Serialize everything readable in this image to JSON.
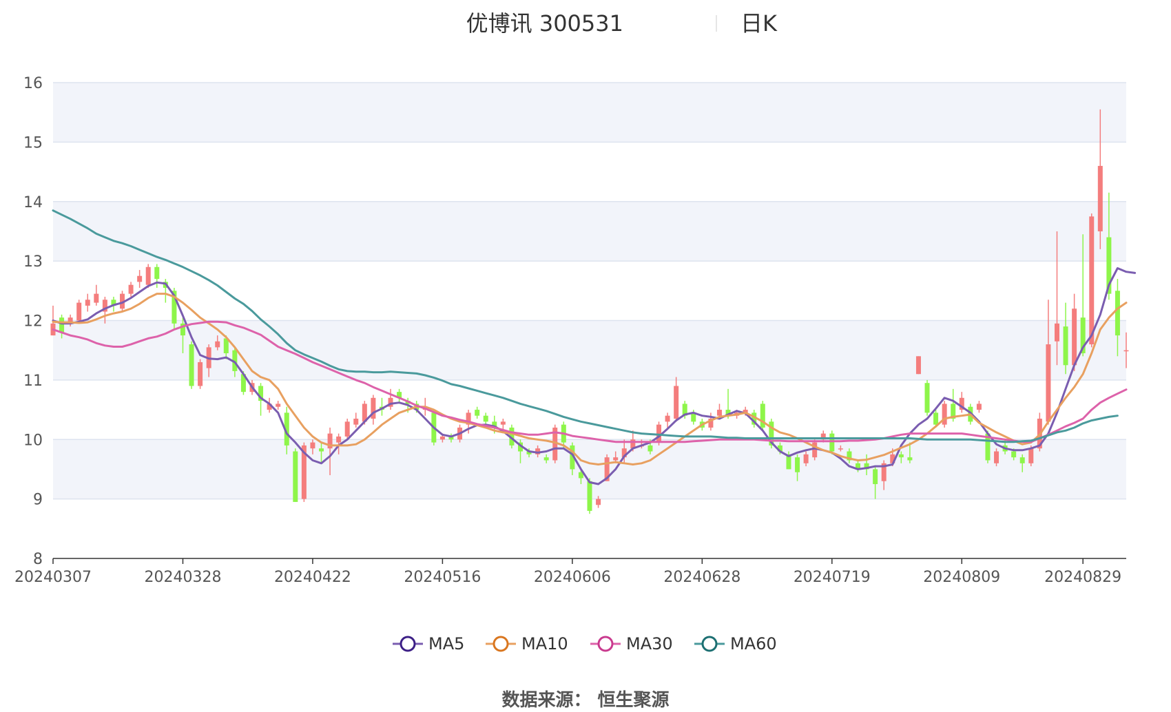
{
  "title": {
    "stock": "优博讯 300531",
    "period": "日K"
  },
  "source_label": "数据来源：  恒生聚源",
  "colors": {
    "up": "#f47d7d",
    "down": "#8ef54a",
    "ma5": "#7a5db0",
    "ma10": "#e8a060",
    "ma30": "#dd62aa",
    "ma60": "#4a9a9c",
    "grid": "#dde3ef",
    "band": "#f2f4fa",
    "legend_ma5": "#3c1f86",
    "legend_ma10": "#d9761f",
    "legend_ma30": "#c93a8e",
    "legend_ma60": "#1c6f72"
  },
  "chart_data": {
    "type": "candlestick",
    "ylim": [
      8,
      16
    ],
    "yticks": [
      8,
      9,
      10,
      11,
      12,
      13,
      14,
      15,
      16
    ],
    "xtick_labels": [
      "20240307",
      "20240328",
      "20240422",
      "20240516",
      "20240606",
      "20240628",
      "20240719",
      "20240809",
      "20240829"
    ],
    "xtick_index": [
      0,
      15,
      30,
      45,
      60,
      75,
      90,
      105,
      119
    ],
    "legend": [
      "MA5",
      "MA10",
      "MA30",
      "MA60"
    ],
    "candles": [
      [
        11.75,
        11.95,
        11.75,
        12.25
      ],
      [
        12.05,
        11.8,
        11.7,
        12.1
      ],
      [
        11.95,
        12.05,
        11.9,
        12.1
      ],
      [
        12.0,
        12.3,
        11.95,
        12.35
      ],
      [
        12.25,
        12.35,
        12.15,
        12.45
      ],
      [
        12.3,
        12.45,
        12.25,
        12.6
      ],
      [
        12.15,
        12.35,
        11.95,
        12.4
      ],
      [
        12.35,
        12.25,
        12.15,
        12.4
      ],
      [
        12.2,
        12.45,
        12.15,
        12.5
      ],
      [
        12.45,
        12.6,
        12.4,
        12.65
      ],
      [
        12.65,
        12.75,
        12.55,
        12.85
      ],
      [
        12.6,
        12.9,
        12.55,
        12.95
      ],
      [
        12.9,
        12.7,
        12.55,
        12.95
      ],
      [
        12.65,
        12.55,
        12.3,
        12.7
      ],
      [
        12.5,
        11.95,
        11.85,
        12.55
      ],
      [
        11.95,
        11.75,
        11.45,
        12.05
      ],
      [
        11.6,
        10.9,
        10.85,
        11.65
      ],
      [
        10.9,
        11.3,
        10.85,
        11.35
      ],
      [
        11.2,
        11.55,
        11.05,
        11.6
      ],
      [
        11.55,
        11.65,
        11.5,
        11.75
      ],
      [
        11.7,
        11.45,
        11.35,
        11.75
      ],
      [
        11.5,
        11.15,
        11.05,
        11.55
      ],
      [
        11.1,
        10.8,
        10.75,
        11.15
      ],
      [
        10.8,
        10.95,
        10.75,
        11.0
      ],
      [
        10.9,
        10.65,
        10.4,
        10.95
      ],
      [
        10.5,
        10.6,
        10.45,
        10.7
      ],
      [
        10.55,
        10.6,
        10.5,
        10.65
      ],
      [
        10.45,
        9.9,
        9.75,
        10.55
      ],
      [
        9.8,
        8.95,
        8.95,
        9.85
      ],
      [
        9.0,
        9.9,
        8.95,
        9.95
      ],
      [
        9.85,
        9.95,
        9.75,
        10.0
      ],
      [
        9.85,
        9.8,
        9.6,
        9.95
      ],
      [
        9.85,
        10.1,
        9.4,
        10.2
      ],
      [
        9.95,
        10.05,
        9.75,
        10.1
      ],
      [
        10.05,
        10.3,
        10.0,
        10.35
      ],
      [
        10.25,
        10.35,
        10.2,
        10.45
      ],
      [
        10.3,
        10.6,
        10.25,
        10.65
      ],
      [
        10.35,
        10.7,
        10.25,
        10.75
      ],
      [
        10.55,
        10.5,
        10.4,
        10.7
      ],
      [
        10.55,
        10.7,
        10.5,
        10.85
      ],
      [
        10.8,
        10.7,
        10.6,
        10.85
      ],
      [
        10.65,
        10.6,
        10.45,
        10.7
      ],
      [
        10.6,
        10.5,
        10.45,
        10.65
      ],
      [
        10.5,
        10.55,
        10.4,
        10.7
      ],
      [
        10.45,
        9.95,
        9.9,
        10.5
      ],
      [
        10.0,
        10.05,
        9.95,
        10.1
      ],
      [
        10.05,
        10.0,
        9.95,
        10.1
      ],
      [
        10.0,
        10.2,
        9.95,
        10.25
      ],
      [
        10.25,
        10.45,
        10.1,
        10.5
      ],
      [
        10.5,
        10.4,
        10.35,
        10.55
      ],
      [
        10.4,
        10.3,
        10.2,
        10.45
      ],
      [
        10.3,
        10.2,
        10.1,
        10.4
      ],
      [
        10.25,
        10.3,
        10.15,
        10.35
      ],
      [
        10.2,
        9.9,
        9.85,
        10.25
      ],
      [
        9.95,
        9.8,
        9.6,
        10.0
      ],
      [
        9.8,
        9.75,
        9.7,
        9.85
      ],
      [
        9.75,
        9.85,
        9.7,
        9.9
      ],
      [
        9.7,
        9.65,
        9.6,
        9.75
      ],
      [
        9.65,
        10.2,
        9.6,
        10.25
      ],
      [
        10.25,
        9.95,
        9.85,
        10.3
      ],
      [
        9.9,
        9.5,
        9.4,
        9.95
      ],
      [
        9.45,
        9.35,
        9.25,
        9.5
      ],
      [
        9.3,
        8.8,
        8.75,
        9.35
      ],
      [
        8.9,
        9.0,
        8.85,
        9.05
      ],
      [
        9.3,
        9.7,
        9.3,
        9.75
      ],
      [
        9.65,
        9.7,
        9.6,
        9.8
      ],
      [
        9.7,
        9.85,
        9.6,
        10.0
      ],
      [
        9.85,
        10.0,
        9.8,
        10.15
      ],
      [
        9.9,
        9.9,
        9.85,
        10.0
      ],
      [
        9.9,
        9.8,
        9.75,
        10.0
      ],
      [
        9.95,
        10.25,
        9.9,
        10.3
      ],
      [
        10.3,
        10.4,
        10.2,
        10.45
      ],
      [
        10.35,
        10.9,
        10.3,
        11.05
      ],
      [
        10.6,
        10.4,
        10.35,
        10.65
      ],
      [
        10.45,
        10.3,
        10.25,
        10.5
      ],
      [
        10.3,
        10.2,
        10.15,
        10.35
      ],
      [
        10.2,
        10.35,
        10.15,
        10.45
      ],
      [
        10.4,
        10.5,
        10.35,
        10.6
      ],
      [
        10.5,
        10.4,
        10.35,
        10.85
      ],
      [
        10.4,
        10.45,
        10.35,
        10.5
      ],
      [
        10.45,
        10.5,
        10.4,
        10.55
      ],
      [
        10.45,
        10.25,
        10.2,
        10.5
      ],
      [
        10.6,
        10.2,
        10.15,
        10.65
      ],
      [
        10.3,
        9.9,
        9.85,
        10.35
      ],
      [
        9.9,
        9.8,
        9.75,
        9.95
      ],
      [
        9.75,
        9.5,
        9.5,
        9.8
      ],
      [
        9.7,
        9.45,
        9.3,
        9.75
      ],
      [
        9.6,
        9.75,
        9.55,
        9.8
      ],
      [
        9.7,
        9.95,
        9.65,
        10.0
      ],
      [
        10.0,
        10.1,
        9.95,
        10.15
      ],
      [
        10.1,
        9.8,
        9.75,
        10.15
      ],
      [
        9.85,
        9.85,
        9.8,
        9.9
      ],
      [
        9.8,
        9.65,
        9.6,
        9.85
      ],
      [
        9.6,
        9.5,
        9.45,
        9.65
      ],
      [
        9.6,
        9.5,
        9.4,
        9.75
      ],
      [
        9.5,
        9.25,
        9.0,
        9.55
      ],
      [
        9.3,
        9.6,
        9.15,
        9.65
      ],
      [
        9.6,
        9.75,
        9.55,
        9.85
      ],
      [
        9.75,
        9.7,
        9.6,
        9.8
      ],
      [
        9.7,
        9.65,
        9.6,
        9.95
      ],
      [
        11.1,
        11.4,
        11.1,
        11.4
      ],
      [
        10.95,
        10.45,
        10.4,
        11.0
      ],
      [
        10.45,
        10.25,
        10.2,
        10.5
      ],
      [
        10.25,
        10.6,
        10.2,
        10.65
      ],
      [
        10.6,
        10.35,
        10.3,
        10.85
      ],
      [
        10.5,
        10.7,
        10.45,
        10.8
      ],
      [
        10.55,
        10.3,
        10.25,
        10.6
      ],
      [
        10.5,
        10.6,
        10.45,
        10.65
      ],
      [
        10.1,
        9.65,
        9.6,
        10.15
      ],
      [
        9.6,
        9.8,
        9.55,
        9.85
      ],
      [
        9.9,
        9.8,
        9.75,
        10.0
      ],
      [
        9.8,
        9.7,
        9.65,
        9.85
      ],
      [
        9.7,
        9.6,
        9.45,
        9.75
      ],
      [
        9.6,
        9.85,
        9.55,
        9.9
      ],
      [
        9.85,
        10.35,
        9.8,
        10.45
      ],
      [
        10.3,
        11.6,
        10.25,
        12.35
      ],
      [
        11.65,
        11.95,
        11.25,
        13.5
      ],
      [
        11.9,
        11.25,
        11.1,
        12.3
      ],
      [
        11.25,
        12.2,
        11.15,
        12.45
      ],
      [
        12.05,
        11.45,
        11.4,
        13.45
      ],
      [
        11.6,
        13.75,
        11.55,
        13.8
      ],
      [
        13.5,
        14.6,
        13.2,
        15.55
      ],
      [
        13.4,
        12.45,
        12.35,
        14.15
      ],
      [
        12.5,
        11.75,
        11.4,
        12.7
      ],
      [
        11.5,
        11.5,
        11.2,
        11.8
      ]
    ],
    "series": [
      {
        "name": "MA5",
        "values": [
          12.0,
          11.95,
          11.95,
          11.98,
          12.02,
          12.12,
          12.2,
          12.26,
          12.3,
          12.38,
          12.48,
          12.58,
          12.64,
          12.62,
          12.42,
          12.08,
          11.72,
          11.42,
          11.36,
          11.35,
          11.38,
          11.3,
          11.1,
          10.88,
          10.7,
          10.6,
          10.45,
          10.1,
          9.95,
          9.78,
          9.65,
          9.6,
          9.72,
          9.9,
          10.0,
          10.15,
          10.3,
          10.45,
          10.52,
          10.6,
          10.62,
          10.58,
          10.5,
          10.35,
          10.2,
          10.08,
          10.05,
          10.1,
          10.18,
          10.24,
          10.25,
          10.22,
          10.14,
          10.02,
          9.9,
          9.8,
          9.78,
          9.8,
          9.85,
          9.85,
          9.75,
          9.5,
          9.28,
          9.25,
          9.35,
          9.5,
          9.72,
          9.85,
          9.9,
          9.95,
          10.05,
          10.18,
          10.32,
          10.42,
          10.45,
          10.4,
          10.38,
          10.35,
          10.42,
          10.48,
          10.44,
          10.3,
          10.15,
          9.95,
          9.8,
          9.72,
          9.78,
          9.82,
          9.85,
          9.82,
          9.78,
          9.68,
          9.55,
          9.5,
          9.52,
          9.55,
          9.55,
          9.58,
          9.9,
          10.1,
          10.25,
          10.35,
          10.52,
          10.7,
          10.65,
          10.55,
          10.45,
          10.3,
          10.1,
          9.92,
          9.85,
          9.82,
          9.82,
          9.85,
          9.9,
          10.1,
          10.45,
          10.85,
          11.25,
          11.55,
          11.75,
          12.1,
          12.6,
          12.88,
          12.82,
          12.8
        ]
      },
      {
        "name": "MA10",
        "values": [
          11.98,
          11.97,
          11.97,
          11.96,
          11.97,
          12.02,
          12.08,
          12.12,
          12.15,
          12.2,
          12.28,
          12.38,
          12.45,
          12.45,
          12.4,
          12.3,
          12.18,
          12.05,
          11.95,
          11.85,
          11.72,
          11.55,
          11.35,
          11.15,
          11.05,
          11.0,
          10.85,
          10.6,
          10.4,
          10.2,
          10.05,
          9.95,
          9.9,
          9.9,
          9.9,
          9.92,
          10.0,
          10.12,
          10.25,
          10.35,
          10.45,
          10.5,
          10.55,
          10.55,
          10.5,
          10.42,
          10.35,
          10.3,
          10.28,
          10.24,
          10.2,
          10.15,
          10.12,
          10.1,
          10.06,
          10.02,
          10.0,
          9.98,
          9.95,
          9.9,
          9.8,
          9.65,
          9.6,
          9.58,
          9.6,
          9.62,
          9.6,
          9.58,
          9.6,
          9.65,
          9.75,
          9.85,
          9.95,
          10.05,
          10.15,
          10.25,
          10.32,
          10.38,
          10.4,
          10.42,
          10.45,
          10.38,
          10.3,
          10.2,
          10.12,
          10.08,
          10.02,
          9.95,
          9.88,
          9.82,
          9.78,
          9.72,
          9.68,
          9.65,
          9.66,
          9.7,
          9.74,
          9.8,
          9.86,
          9.92,
          10.0,
          10.1,
          10.22,
          10.35,
          10.38,
          10.4,
          10.42,
          10.28,
          10.2,
          10.12,
          10.05,
          9.98,
          9.92,
          9.95,
          10.08,
          10.3,
          10.5,
          10.7,
          10.88,
          11.1,
          11.45,
          11.85,
          12.05,
          12.2,
          12.3
        ]
      },
      {
        "name": "MA30",
        "values": [
          11.85,
          11.8,
          11.75,
          11.72,
          11.68,
          11.62,
          11.58,
          11.56,
          11.56,
          11.6,
          11.65,
          11.7,
          11.73,
          11.78,
          11.85,
          11.9,
          11.94,
          11.96,
          11.98,
          11.98,
          11.97,
          11.92,
          11.88,
          11.82,
          11.76,
          11.66,
          11.56,
          11.5,
          11.44,
          11.37,
          11.3,
          11.24,
          11.18,
          11.12,
          11.06,
          11.0,
          10.95,
          10.88,
          10.82,
          10.76,
          10.7,
          10.64,
          10.57,
          10.52,
          10.46,
          10.4,
          10.37,
          10.33,
          10.3,
          10.26,
          10.23,
          10.2,
          10.16,
          10.12,
          10.1,
          10.08,
          10.08,
          10.1,
          10.12,
          10.1,
          10.06,
          10.04,
          10.02,
          10.0,
          9.98,
          9.96,
          9.96,
          9.96,
          9.96,
          9.96,
          9.96,
          9.96,
          9.96,
          9.96,
          9.97,
          9.98,
          9.99,
          10.0,
          10.0,
          10.0,
          10.0,
          10.0,
          9.99,
          9.98,
          9.98,
          9.97,
          9.97,
          9.97,
          9.97,
          9.97,
          9.97,
          9.97,
          9.98,
          9.98,
          9.99,
          10.0,
          10.02,
          10.05,
          10.08,
          10.1,
          10.1,
          10.1,
          10.1,
          10.1,
          10.1,
          10.1,
          10.08,
          10.06,
          10.04,
          10.02,
          10.0,
          9.98,
          9.96,
          9.96,
          10.02,
          10.08,
          10.15,
          10.22,
          10.28,
          10.35,
          10.5,
          10.62,
          10.7,
          10.77,
          10.84
        ]
      },
      {
        "name": "MA60",
        "values": [
          13.85,
          13.78,
          13.71,
          13.63,
          13.55,
          13.46,
          13.4,
          13.34,
          13.3,
          13.25,
          13.19,
          13.13,
          13.07,
          13.02,
          12.96,
          12.9,
          12.83,
          12.76,
          12.68,
          12.59,
          12.48,
          12.37,
          12.28,
          12.16,
          12.02,
          11.9,
          11.77,
          11.62,
          11.5,
          11.43,
          11.37,
          11.31,
          11.24,
          11.18,
          11.15,
          11.14,
          11.14,
          11.13,
          11.13,
          11.14,
          11.13,
          11.12,
          11.11,
          11.08,
          11.04,
          10.99,
          10.93,
          10.9,
          10.86,
          10.82,
          10.78,
          10.74,
          10.7,
          10.65,
          10.6,
          10.56,
          10.52,
          10.48,
          10.43,
          10.38,
          10.34,
          10.3,
          10.27,
          10.24,
          10.21,
          10.18,
          10.15,
          10.12,
          10.1,
          10.09,
          10.08,
          10.07,
          10.06,
          10.05,
          10.05,
          10.05,
          10.05,
          10.04,
          10.03,
          10.03,
          10.02,
          10.02,
          10.02,
          10.02,
          10.02,
          10.02,
          10.02,
          10.02,
          10.02,
          10.02,
          10.02,
          10.02,
          10.02,
          10.02,
          10.02,
          10.02,
          10.02,
          10.02,
          10.02,
          10.02,
          10.01,
          10.0,
          10.0,
          10.0,
          10.0,
          10.0,
          10.0,
          9.99,
          9.98,
          9.97,
          9.96,
          9.96,
          9.97,
          9.98,
          10.02,
          10.07,
          10.12,
          10.15,
          10.2,
          10.27,
          10.32,
          10.35,
          10.38,
          10.4
        ]
      }
    ]
  }
}
